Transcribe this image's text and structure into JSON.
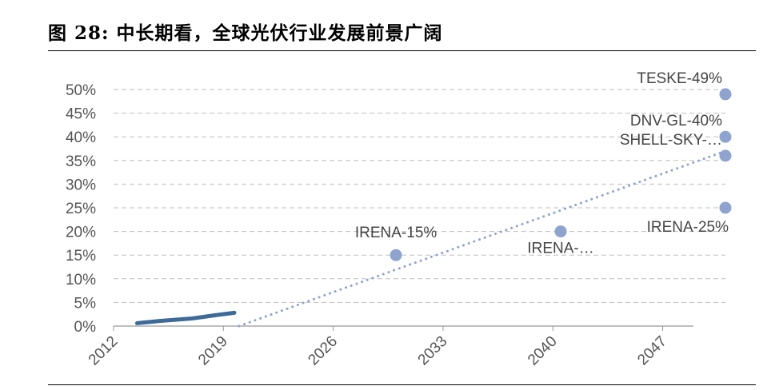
{
  "title": "图 28: 中长期看，全球光伏行业发展前景广阔",
  "colors": {
    "actual": "#3d6a99",
    "forecast": "#8fa3cf",
    "grid": "#bfbfbf",
    "axis": "#999999"
  },
  "chart_data": {
    "type": "scatter",
    "title": "",
    "xlabel": "",
    "ylabel": "",
    "xlim": [
      2012,
      2051
    ],
    "ylim": [
      0,
      50
    ],
    "x_ticks": [
      "2012",
      "2019",
      "2026",
      "2033",
      "2040",
      "2047"
    ],
    "y_ticks": [
      "0%",
      "5%",
      "10%",
      "15%",
      "20%",
      "25%",
      "30%",
      "35%",
      "40%",
      "45%",
      "50%"
    ],
    "grid": true,
    "series": [
      {
        "style": "solid-line",
        "color": "#3d6a99",
        "x": [
          2013.5,
          2015,
          2017,
          2018.5,
          2019.7
        ],
        "y": [
          0.6,
          1.1,
          1.6,
          2.3,
          2.8
        ]
      },
      {
        "style": "dotted-line",
        "color": "#8fa3cf",
        "x": [
          2020,
          2051
        ],
        "y": [
          0,
          37
        ]
      },
      {
        "style": "markers",
        "color": "#8fa3cf",
        "points": [
          {
            "x": 2030,
            "y": 15,
            "label": "IRENA-15%",
            "label_pos": "above"
          },
          {
            "x": 2040.5,
            "y": 20,
            "label": "IRENA-…",
            "label_pos": "below"
          },
          {
            "x": 2051,
            "y": 49,
            "label": "TESKE-49%",
            "label_pos": "above-left"
          },
          {
            "x": 2051,
            "y": 40,
            "label": "DNV-GL-40%",
            "label_pos": "above-left"
          },
          {
            "x": 2051,
            "y": 36,
            "label": "SHELL-SKY-…",
            "label_pos": "above-left"
          },
          {
            "x": 2051,
            "y": 25,
            "label": "IRENA-25%",
            "label_pos": "below-left"
          }
        ]
      }
    ]
  }
}
